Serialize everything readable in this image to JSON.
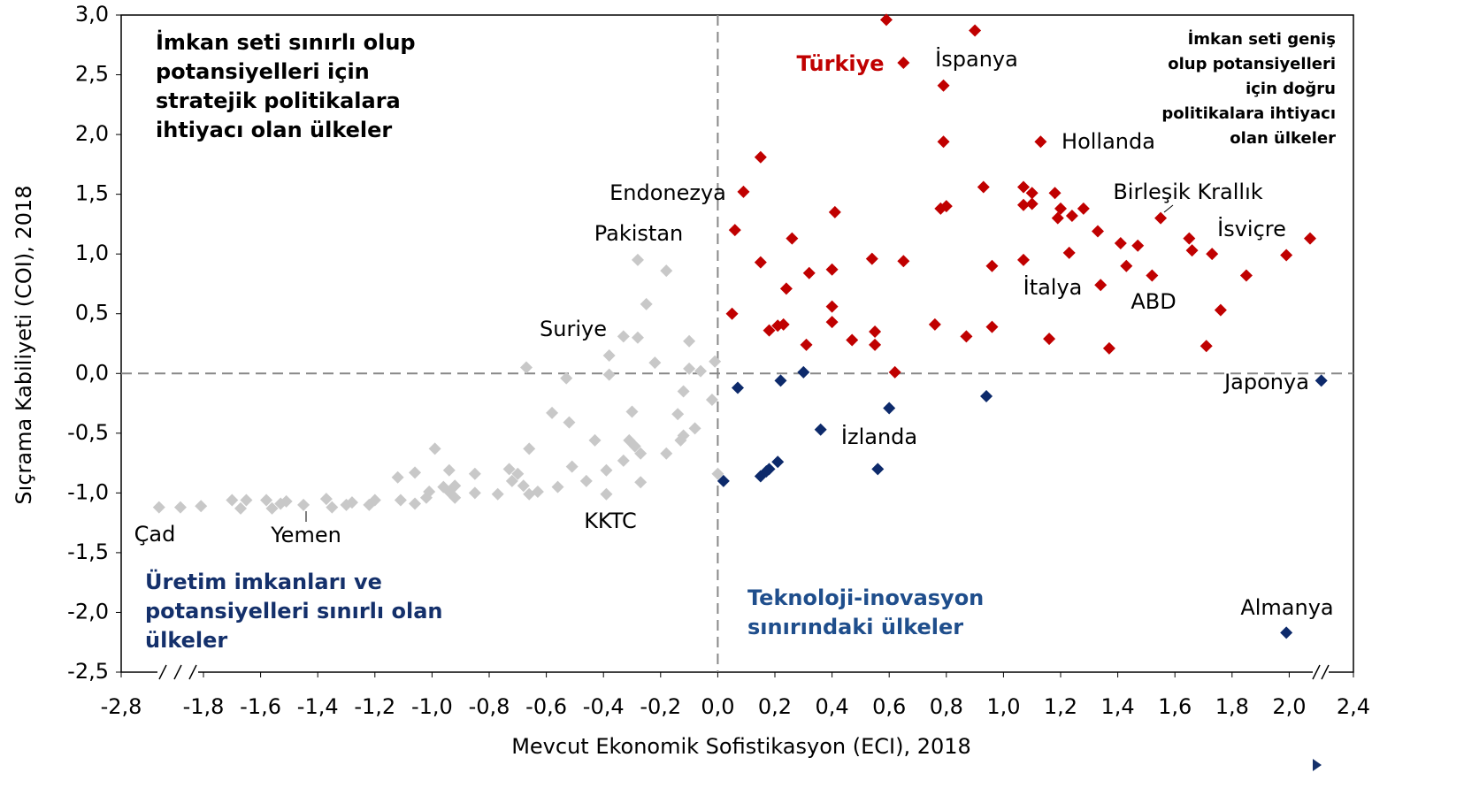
{
  "chart_data": {
    "type": "scatter",
    "x_label": "Mevcut Ekonomik Sofistikasyon (ECI), 2018",
    "y_label": "Sıçrama Kabiliyeti (COI), 2018",
    "xlim": [
      -2.8,
      2.4
    ],
    "ylim": [
      -2.5,
      3.0
    ],
    "xticks": [
      {
        "value": -2.8,
        "label": "-2,8"
      },
      {
        "value": -1.8,
        "label": "-1,8"
      },
      {
        "value": -1.6,
        "label": "-1,6"
      },
      {
        "value": -1.4,
        "label": "-1,4"
      },
      {
        "value": -1.2,
        "label": "-1,2"
      },
      {
        "value": -1.0,
        "label": "-1,0"
      },
      {
        "value": -0.8,
        "label": "-0,8"
      },
      {
        "value": -0.6,
        "label": "-0,6"
      },
      {
        "value": -0.4,
        "label": "-0,4"
      },
      {
        "value": -0.2,
        "label": "-0,2"
      },
      {
        "value": 0,
        "label": "0,0"
      },
      {
        "value": 0.2,
        "label": "0,2"
      },
      {
        "value": 0.4,
        "label": "0,4"
      },
      {
        "value": 0.6,
        "label": "0,6"
      },
      {
        "value": 0.8,
        "label": "0,8"
      },
      {
        "value": 1.0,
        "label": "1,0"
      },
      {
        "value": 1.2,
        "label": "1,2"
      },
      {
        "value": 1.4,
        "label": "1,4"
      },
      {
        "value": 1.6,
        "label": "1,6"
      },
      {
        "value": 1.8,
        "label": "1,8"
      },
      {
        "value": 2.0,
        "label": "2,0"
      },
      {
        "value": 2.4,
        "label": "2,4"
      }
    ],
    "yticks": [
      {
        "value": -2.5,
        "label": "-2,5"
      },
      {
        "value": -2.0,
        "label": "-2,0"
      },
      {
        "value": -1.5,
        "label": "-1,5"
      },
      {
        "value": -1.0,
        "label": "-1,0"
      },
      {
        "value": -0.5,
        "label": "-0,5"
      },
      {
        "value": 0,
        "label": "0,0"
      },
      {
        "value": 0.5,
        "label": "0,5"
      },
      {
        "value": 1.0,
        "label": "1,0"
      },
      {
        "value": 1.5,
        "label": "1,5"
      },
      {
        "value": 2.0,
        "label": "2,0"
      },
      {
        "value": 2.5,
        "label": "2,5"
      },
      {
        "value": 3.0,
        "label": "3,0"
      }
    ],
    "series": [
      {
        "color": "#c00000",
        "x": [
          0.59,
          0.9,
          0.65,
          0.79,
          0.79,
          1.13,
          0.15,
          0.09,
          0.93,
          1.07,
          1.1,
          1.18,
          1.07,
          1.1,
          0.78,
          0.8,
          1.2,
          1.19,
          1.24,
          1.28,
          0.41,
          1.55,
          0.06,
          1.33,
          0.26,
          1.65,
          1.41,
          1.47,
          2.13,
          1.66,
          1.23,
          1.73,
          1.99,
          0.54,
          0.65,
          1.07,
          0.15,
          0.96,
          1.43,
          0.4,
          0.32,
          1.52,
          1.85,
          0.24,
          1.34,
          0.4,
          0.05,
          1.76,
          0.4,
          0.23,
          0.21,
          0.18,
          0.76,
          0.96,
          0.55,
          0.87,
          1.16,
          0.47,
          0.31,
          0.55,
          1.71,
          1.37,
          0.62
        ],
        "values": [
          2.96,
          2.87,
          2.6,
          2.41,
          1.94,
          1.94,
          1.81,
          1.52,
          1.56,
          1.56,
          1.51,
          1.51,
          1.41,
          1.42,
          1.38,
          1.4,
          1.38,
          1.3,
          1.32,
          1.38,
          1.35,
          1.3,
          1.2,
          1.19,
          1.13,
          1.13,
          1.09,
          1.07,
          1.13,
          1.03,
          1.01,
          1.0,
          0.99,
          0.96,
          0.94,
          0.95,
          0.93,
          0.9,
          0.9,
          0.87,
          0.84,
          0.82,
          0.82,
          0.71,
          0.74,
          0.56,
          0.5,
          0.53,
          0.43,
          0.41,
          0.4,
          0.36,
          0.41,
          0.39,
          0.35,
          0.31,
          0.29,
          0.28,
          0.24,
          0.24,
          0.23,
          0.21,
          0.01
        ]
      },
      {
        "color": "#0d2a6b",
        "x": [
          0.3,
          0.07,
          0.22,
          2.2,
          0.94,
          0.6,
          0.36,
          0.21,
          0.18,
          0.17,
          0.15,
          0.56,
          0.02,
          1.99
        ],
        "values": [
          0.01,
          -0.12,
          -0.06,
          -0.06,
          -0.19,
          -0.29,
          -0.47,
          -0.74,
          -0.8,
          -0.82,
          -0.86,
          -0.8,
          -0.9,
          -2.17
        ]
      },
      {
        "color": "#c8c8c8",
        "x": [
          -0.28,
          -0.18,
          -0.25,
          -0.33,
          -0.28,
          -0.1,
          -0.38,
          -0.22,
          -0.01,
          -0.1,
          -0.06,
          -0.38,
          -0.67,
          -0.53,
          -0.12,
          -0.02,
          -0.58,
          -0.3,
          -0.14,
          -0.52,
          -0.08,
          -0.12,
          -0.43,
          -0.31,
          -0.13,
          -0.99,
          -0.66,
          -0.29,
          -0.27,
          -0.18,
          -0.33,
          -1.06,
          -0.94,
          -0.85,
          -0.73,
          -0.7,
          -0.51,
          -0.39,
          -1.12,
          -0.72,
          -0.68,
          -0.46,
          -0.27,
          0.0,
          -0.96,
          -0.92,
          -0.56,
          -1.01,
          -0.94,
          -0.85,
          -0.66,
          -0.63,
          -0.39,
          -0.77,
          -1.02,
          -0.92,
          -1.11,
          -1.06,
          -1.2,
          -1.22,
          -1.28,
          -1.3,
          -1.35,
          -1.37,
          -1.45,
          -1.51,
          -1.53,
          -1.56,
          -1.58,
          -1.65,
          -1.67,
          -1.7,
          -1.83,
          -2.08,
          -2.34
        ],
        "values": [
          0.95,
          0.86,
          0.58,
          0.31,
          0.3,
          0.27,
          0.15,
          0.09,
          0.1,
          0.04,
          0.02,
          -0.01,
          0.05,
          -0.04,
          -0.15,
          -0.22,
          -0.33,
          -0.32,
          -0.34,
          -0.41,
          -0.46,
          -0.52,
          -0.56,
          -0.56,
          -0.56,
          -0.63,
          -0.63,
          -0.61,
          -0.67,
          -0.67,
          -0.73,
          -0.83,
          -0.81,
          -0.84,
          -0.8,
          -0.84,
          -0.78,
          -0.81,
          -0.87,
          -0.9,
          -0.94,
          -0.9,
          -0.91,
          -0.84,
          -0.95,
          -0.94,
          -0.95,
          -0.99,
          -0.99,
          -1.0,
          -1.01,
          -0.99,
          -1.01,
          -1.01,
          -1.04,
          -1.04,
          -1.06,
          -1.09,
          -1.06,
          -1.1,
          -1.08,
          -1.1,
          -1.12,
          -1.05,
          -1.1,
          -1.07,
          -1.09,
          -1.13,
          -1.06,
          -1.06,
          -1.13,
          -1.06,
          -1.11,
          -1.12,
          -1.12
        ]
      }
    ],
    "annotations": [
      "Çad",
      "Yemen",
      "KKTC",
      "Suriye",
      "Pakistan",
      "Endonezya",
      "Türkiye",
      "İspanya",
      "Hollanda",
      "Birleşik Krallık",
      "İsviçre",
      "İtalya",
      "ABD",
      "Japonya",
      "İzlanda",
      "Almanya"
    ],
    "quadrant_labels": [
      [
        "İmkan seti sınırlı olup",
        "potansiyelleri için",
        "stratejik politikalara",
        "ihtiyacı olan ülkeler"
      ],
      [
        "İmkan seti geniş",
        "olup potansiyelleri",
        "için  doğru",
        "politikalara ihtiyacı",
        "olan ülkeler"
      ],
      [
        "Üretim imkanları ve",
        "potansiyelleri sınırlı olan",
        "ülkeler"
      ],
      [
        "Teknoloji-inovasyon",
        "sınırındaki ülkeler"
      ]
    ]
  }
}
